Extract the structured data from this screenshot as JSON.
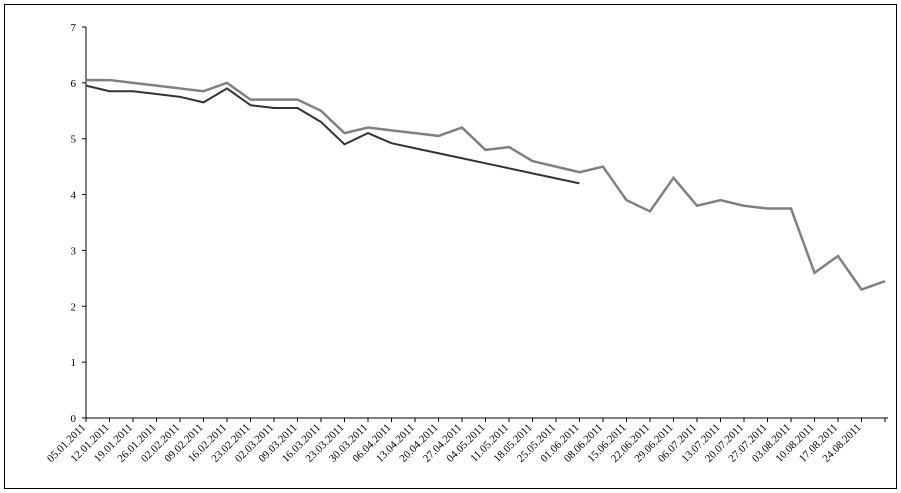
{
  "chart_data": {
    "type": "line",
    "categories": [
      "05.01.2011",
      "12.01.2011",
      "19.01.2011",
      "26.01.2011",
      "02.02.2011",
      "09.02.2011",
      "16.02.2011",
      "23.02.2011",
      "02.03.2011",
      "09.03.2011",
      "16.03.2011",
      "23.03.2011",
      "30.03.2011",
      "06.04.2011",
      "13.04.2011",
      "20.04.2011",
      "27.04.2011",
      "04.05.2011",
      "11.05.2011",
      "18.05.2011",
      "25.05.2011",
      "01.06.2011",
      "08.06.2011",
      "15.06.2011",
      "22.06.2011",
      "29.06.2011",
      "06.07.2011",
      "13.07.2011",
      "20.07.2011",
      "27.07.2011",
      "03.08.2011",
      "10.08.2011",
      "17.08.2011",
      "24.08.2011",
      null
    ],
    "series": [
      {
        "color": "#808080",
        "values": [
          6.05,
          6.05,
          6.0,
          5.95,
          5.9,
          5.85,
          6.0,
          5.7,
          5.7,
          5.7,
          5.5,
          5.1,
          5.2,
          5.15,
          5.1,
          5.05,
          5.2,
          4.8,
          4.85,
          4.6,
          4.5,
          4.4,
          4.5,
          3.9,
          3.7,
          4.3,
          3.8,
          3.9,
          3.8,
          3.75,
          3.75,
          2.6,
          2.9,
          2.3,
          2.45
        ]
      },
      {
        "color": "#333333",
        "values": [
          5.95,
          5.85,
          5.85,
          5.8,
          5.75,
          5.65,
          5.9,
          5.6,
          5.55,
          5.55,
          5.3,
          4.9,
          5.1,
          4.92,
          4.83,
          4.74,
          4.65,
          4.56,
          4.47,
          4.38,
          4.29,
          4.2,
          null,
          null,
          null,
          null,
          null,
          null,
          null,
          null,
          null,
          null,
          null,
          null,
          null
        ]
      }
    ],
    "ylim": [
      0,
      7
    ],
    "yticks": [
      0,
      1,
      2,
      3,
      4,
      5,
      6,
      7
    ]
  }
}
